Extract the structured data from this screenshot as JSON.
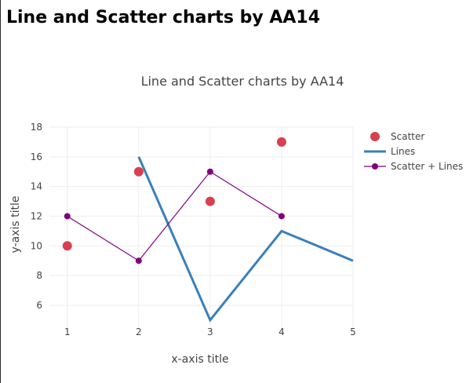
{
  "page": {
    "heading": "Line and Scatter charts by AA14"
  },
  "chart_data": {
    "type": "line",
    "title": "Line and Scatter charts by AA14",
    "xlabel": "x-axis title",
    "ylabel": "y-axis title",
    "xlim": [
      0.75,
      5
    ],
    "ylim": [
      4.2,
      18
    ],
    "x_ticks": [
      "1",
      "2",
      "3",
      "4",
      "5"
    ],
    "y_ticks": [
      "6",
      "8",
      "10",
      "12",
      "14",
      "16",
      "18"
    ],
    "grid": true,
    "legend_position": "top-right",
    "series": [
      {
        "name": "Scatter",
        "mode": "markers",
        "color": "#d9404f",
        "x": [
          1,
          2,
          3,
          4
        ],
        "y": [
          10,
          15,
          13,
          17
        ]
      },
      {
        "name": "Lines",
        "mode": "lines",
        "color": "#3a80ba",
        "x": [
          2,
          3,
          4,
          5
        ],
        "y": [
          16,
          5,
          11,
          9
        ]
      },
      {
        "name": "Scatter + Lines",
        "mode": "lines+markers",
        "color": "#800080",
        "x": [
          1,
          2,
          3,
          4
        ],
        "y": [
          12,
          9,
          15,
          12
        ]
      }
    ]
  }
}
